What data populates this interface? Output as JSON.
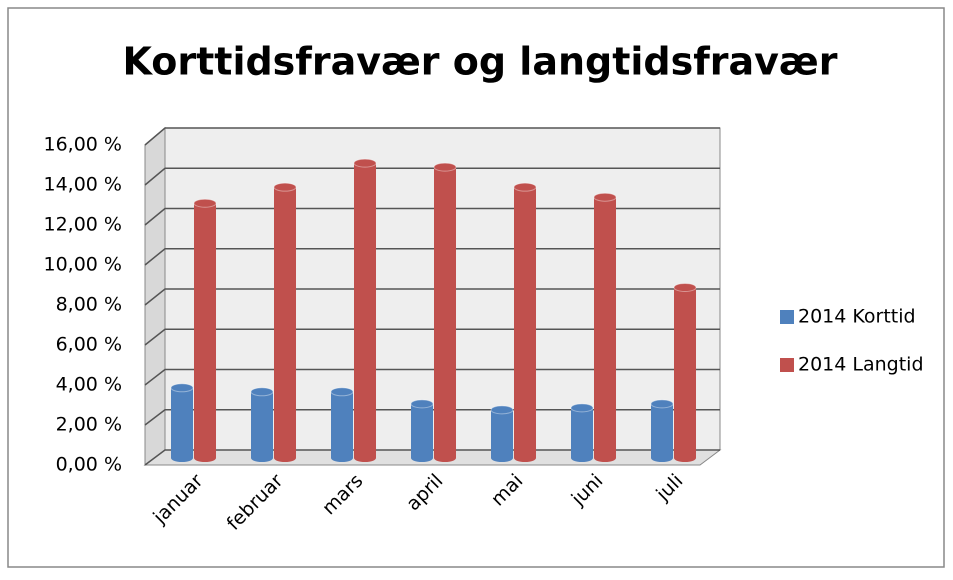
{
  "chart_data": {
    "type": "bar",
    "title": "Korttidsfravær og langtidsfravær",
    "categories": [
      "januar",
      "februar",
      "mars",
      "april",
      "mai",
      "juni",
      "juli"
    ],
    "series": [
      {
        "name": "2014 Korttid",
        "color": "#4f81bd",
        "values": [
          3.5,
          3.3,
          3.3,
          2.7,
          2.4,
          2.5,
          2.7
        ]
      },
      {
        "name": "2014 Langtid",
        "color": "#c0504d",
        "values": [
          12.7,
          13.5,
          14.7,
          14.5,
          13.5,
          13.0,
          8.5
        ]
      }
    ],
    "ylim": [
      0,
      16
    ],
    "yticks": [
      {
        "value": 0,
        "label": "0,00 %"
      },
      {
        "value": 2,
        "label": "2,00 %"
      },
      {
        "value": 4,
        "label": "4,00 %"
      },
      {
        "value": 6,
        "label": "6,00 %"
      },
      {
        "value": 8,
        "label": "8,00 %"
      },
      {
        "value": 10,
        "label": "10,00 %"
      },
      {
        "value": 12,
        "label": "12,00 %"
      },
      {
        "value": 14,
        "label": "14,00 %"
      },
      {
        "value": 16,
        "label": "16,00 %"
      }
    ],
    "grid": true,
    "legend": "right"
  }
}
